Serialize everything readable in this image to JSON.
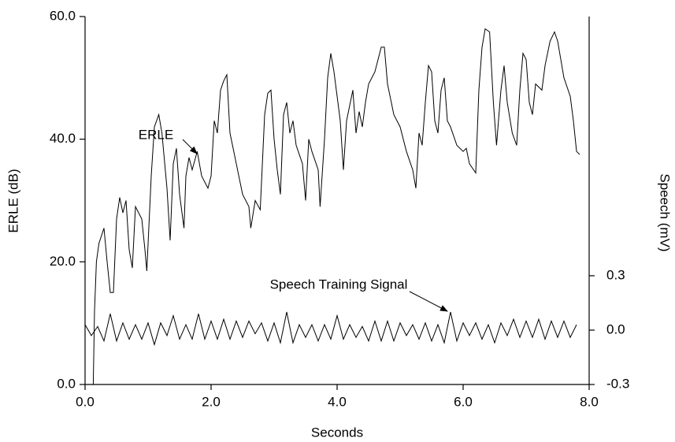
{
  "chart_data": {
    "type": "line",
    "xlabel": "Seconds",
    "ylabel": "ERLE (dB)",
    "y2label": "Speech (mV)",
    "annotations": [
      "ERLE",
      "Speech Training Signal"
    ],
    "xlim": [
      0,
      8
    ],
    "xticks": [
      {
        "value": 0,
        "label": "0.0"
      },
      {
        "value": 2,
        "label": "2.0"
      },
      {
        "value": 4,
        "label": "4.0"
      },
      {
        "value": 6,
        "label": "6.0"
      },
      {
        "value": 8,
        "label": "8.0"
      }
    ],
    "ylim": [
      0,
      60
    ],
    "yticks": [
      {
        "value": 0,
        "label": "0.0"
      },
      {
        "value": 20,
        "label": "20.0"
      },
      {
        "value": 40,
        "label": "40.0"
      },
      {
        "value": 60,
        "label": "60.0"
      }
    ],
    "y2lim": [
      -0.3,
      1.73
    ],
    "y2ticks": [
      {
        "value": -0.3,
        "label": "-0.3"
      },
      {
        "value": 0,
        "label": "0.0"
      },
      {
        "value": 0.3,
        "label": "0.3"
      }
    ],
    "series": [
      {
        "color": "#000000",
        "x": [
          0.13,
          0.15,
          0.18,
          0.22,
          0.3,
          0.35,
          0.4,
          0.45,
          0.5,
          0.55,
          0.6,
          0.65,
          0.7,
          0.75,
          0.8,
          0.85,
          0.9,
          0.95,
          0.98,
          1.05,
          1.1,
          1.17,
          1.22,
          1.3,
          1.35,
          1.4,
          1.45,
          1.5,
          1.57,
          1.6,
          1.65,
          1.7,
          1.78,
          1.85,
          1.95,
          2.0,
          2.05,
          2.1,
          2.15,
          2.2,
          2.25,
          2.3,
          2.4,
          2.5,
          2.6,
          2.63,
          2.7,
          2.78,
          2.85,
          2.9,
          2.95,
          3.0,
          3.05,
          3.1,
          3.15,
          3.2,
          3.25,
          3.3,
          3.35,
          3.45,
          3.5,
          3.55,
          3.6,
          3.7,
          3.73,
          3.8,
          3.85,
          3.9,
          3.95,
          4.0,
          4.05,
          4.1,
          4.15,
          4.25,
          4.3,
          4.35,
          4.4,
          4.45,
          4.5,
          4.6,
          4.7,
          4.75,
          4.8,
          4.9,
          5.0,
          5.1,
          5.2,
          5.25,
          5.3,
          5.35,
          5.4,
          5.45,
          5.5,
          5.55,
          5.6,
          5.65,
          5.7,
          5.75,
          5.8,
          5.9,
          6.0,
          6.05,
          6.1,
          6.2,
          6.25,
          6.3,
          6.35,
          6.42,
          6.48,
          6.53,
          6.6,
          6.65,
          6.7,
          6.78,
          6.85,
          6.9,
          6.95,
          7.0,
          7.05,
          7.1,
          7.15,
          7.25,
          7.3,
          7.38,
          7.45,
          7.5,
          7.6,
          7.7,
          7.75,
          7.8,
          7.85
        ],
        "values": [
          0,
          12,
          20,
          23,
          25.5,
          20,
          15,
          15,
          27,
          30.5,
          28,
          30,
          22,
          19,
          29,
          28,
          27,
          22,
          18.5,
          34,
          42,
          44,
          41,
          32,
          23.5,
          36,
          38.5,
          31,
          25.5,
          34,
          37,
          35,
          38,
          34,
          32,
          34,
          43,
          41,
          48,
          49.5,
          50.5,
          41,
          36,
          31,
          29,
          25.5,
          30,
          28.5,
          44,
          47.5,
          48,
          40,
          35,
          31,
          44,
          46,
          41,
          43,
          39,
          36,
          30,
          40,
          38,
          35,
          29,
          40,
          50,
          54,
          51,
          47,
          43,
          35,
          43,
          48,
          41,
          44.5,
          42,
          46,
          49,
          51,
          55,
          55,
          49,
          44,
          42,
          38,
          35,
          32,
          41,
          39,
          46,
          52,
          51,
          43,
          41,
          48,
          50,
          43,
          42,
          39,
          38,
          38.5,
          36,
          34.5,
          48,
          55,
          58,
          57.5,
          46,
          39,
          48,
          52,
          46,
          41,
          39,
          48,
          54,
          53,
          46,
          44,
          49,
          48,
          52,
          56,
          57.5,
          56,
          50,
          47,
          43,
          38,
          37.5
        ]
      },
      {
        "color": "#000000",
        "axis": "y2",
        "x": [
          0,
          0.1,
          0.2,
          0.3,
          0.4,
          0.5,
          0.6,
          0.7,
          0.8,
          0.9,
          1.0,
          1.1,
          1.2,
          1.3,
          1.4,
          1.5,
          1.6,
          1.7,
          1.8,
          1.9,
          2.0,
          2.1,
          2.2,
          2.3,
          2.4,
          2.5,
          2.6,
          2.7,
          2.8,
          2.9,
          3.0,
          3.1,
          3.2,
          3.3,
          3.4,
          3.5,
          3.6,
          3.7,
          3.8,
          3.9,
          4.0,
          4.1,
          4.2,
          4.3,
          4.4,
          4.5,
          4.6,
          4.7,
          4.8,
          4.9,
          5.0,
          5.1,
          5.2,
          5.3,
          5.4,
          5.5,
          5.6,
          5.7,
          5.8,
          5.9,
          6.0,
          6.1,
          6.2,
          6.3,
          6.4,
          6.5,
          6.6,
          6.7,
          6.8,
          6.9,
          7.0,
          7.1,
          7.2,
          7.3,
          7.4,
          7.5,
          7.6,
          7.7,
          7.8
        ],
        "values": [
          0.03,
          -0.03,
          0.02,
          -0.06,
          0.09,
          -0.06,
          0.04,
          -0.05,
          0.03,
          -0.05,
          0.04,
          -0.08,
          0.04,
          -0.03,
          0.08,
          -0.05,
          0.03,
          -0.05,
          0.09,
          -0.05,
          0.05,
          -0.05,
          0.06,
          -0.05,
          0.05,
          -0.04,
          0.05,
          -0.02,
          0.04,
          -0.06,
          0.04,
          -0.07,
          0.1,
          -0.07,
          0.03,
          -0.04,
          0.03,
          -0.06,
          0.03,
          -0.05,
          0.08,
          -0.05,
          0.03,
          -0.04,
          0.02,
          -0.06,
          0.05,
          -0.06,
          0.05,
          -0.06,
          0.04,
          -0.03,
          0.03,
          -0.05,
          0.04,
          -0.06,
          0.03,
          -0.07,
          0.1,
          -0.06,
          0.04,
          -0.03,
          0.04,
          -0.05,
          0.03,
          -0.07,
          0.04,
          -0.03,
          0.06,
          -0.04,
          0.05,
          -0.04,
          0.06,
          -0.05,
          0.05,
          -0.04,
          0.05,
          -0.04,
          0.03
        ]
      }
    ]
  }
}
